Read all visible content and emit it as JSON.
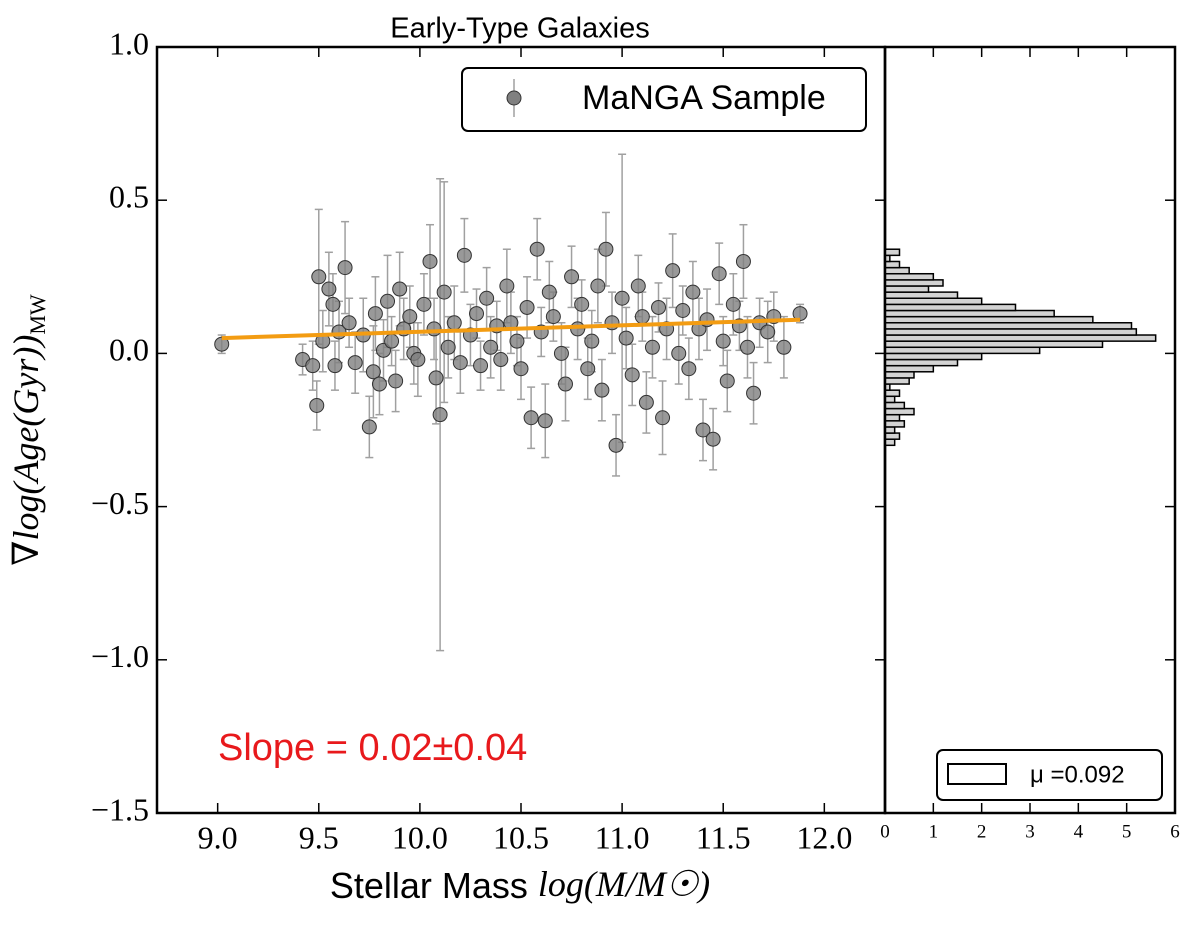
{
  "chart_data": [
    {
      "type": "scatter",
      "title": "Early-Type Galaxies",
      "xlabel": "Stellar Mass",
      "xlabel_math": "log(M/M☉)",
      "ylabel": "∇log(Age(Gyr))",
      "ylabel_sub": "MW",
      "legend": "MaNGA Sample",
      "legend_position": "upper right",
      "annotation": "Slope = 0.02±0.04",
      "annotation_color": "#e8191c",
      "color": "#808080",
      "errcolor": "#a0a0a0",
      "xlim": [
        8.7,
        12.3
      ],
      "ylim": [
        -1.5,
        1.0
      ],
      "xticks": [
        {
          "value": 9,
          "label": "9.0"
        },
        {
          "value": 9.5,
          "label": "9.5"
        },
        {
          "value": 10,
          "label": "10.0"
        },
        {
          "value": 10.5,
          "label": "10.5"
        },
        {
          "value": 11,
          "label": "11.0"
        },
        {
          "value": 11.5,
          "label": "11.5"
        },
        {
          "value": 12,
          "label": "12.0"
        }
      ],
      "yticks": [
        {
          "value": -1.5,
          "label": "−1.5"
        },
        {
          "value": -1,
          "label": "−1.0"
        },
        {
          "value": -0.5,
          "label": "−0.5"
        },
        {
          "value": 0,
          "label": "0.0"
        },
        {
          "value": 0.5,
          "label": "0.5"
        },
        {
          "value": 1,
          "label": "1.0"
        }
      ],
      "fit": {
        "x": [
          9.02,
          11.88
        ],
        "y": [
          0.05,
          0.11
        ],
        "color": "#f39c12"
      },
      "x": [
        9.02,
        9.42,
        9.47,
        9.49,
        9.5,
        9.52,
        9.55,
        9.57,
        9.58,
        9.6,
        9.63,
        9.65,
        9.68,
        9.72,
        9.75,
        9.77,
        9.78,
        9.8,
        9.82,
        9.84,
        9.86,
        9.88,
        9.9,
        9.92,
        9.95,
        9.97,
        9.99,
        10.02,
        10.05,
        10.07,
        10.08,
        10.1,
        10.12,
        10.14,
        10.17,
        10.2,
        10.22,
        10.25,
        10.28,
        10.3,
        10.33,
        10.35,
        10.38,
        10.4,
        10.43,
        10.45,
        10.48,
        10.5,
        10.53,
        10.55,
        10.58,
        10.6,
        10.62,
        10.64,
        10.66,
        10.7,
        10.72,
        10.75,
        10.78,
        10.8,
        10.83,
        10.85,
        10.88,
        10.9,
        10.92,
        10.95,
        10.97,
        11.0,
        11.02,
        11.05,
        11.08,
        11.1,
        11.12,
        11.15,
        11.18,
        11.2,
        11.22,
        11.25,
        11.28,
        11.3,
        11.33,
        11.35,
        11.38,
        11.4,
        11.42,
        11.45,
        11.48,
        11.5,
        11.52,
        11.55,
        11.58,
        11.6,
        11.62,
        11.65,
        11.68,
        11.72,
        11.75,
        11.8,
        11.88
      ],
      "y": [
        0.03,
        -0.02,
        -0.04,
        -0.17,
        0.25,
        0.04,
        0.21,
        0.16,
        -0.04,
        0.07,
        0.28,
        0.1,
        -0.03,
        0.06,
        -0.24,
        -0.06,
        0.13,
        -0.1,
        0.01,
        0.17,
        0.04,
        -0.09,
        0.21,
        0.08,
        0.12,
        0.0,
        -0.02,
        0.16,
        0.3,
        0.08,
        -0.08,
        -0.2,
        0.2,
        0.02,
        0.1,
        -0.03,
        0.32,
        0.06,
        0.13,
        -0.04,
        0.18,
        0.02,
        0.09,
        -0.02,
        0.22,
        0.1,
        0.04,
        -0.05,
        0.15,
        -0.21,
        0.34,
        0.07,
        -0.22,
        0.2,
        0.12,
        0.0,
        -0.1,
        0.25,
        0.08,
        0.16,
        -0.05,
        0.04,
        0.22,
        -0.12,
        0.34,
        0.1,
        -0.3,
        0.18,
        0.05,
        -0.07,
        0.22,
        0.12,
        -0.16,
        0.02,
        0.15,
        -0.21,
        0.08,
        0.27,
        0.0,
        0.14,
        -0.05,
        0.2,
        0.08,
        -0.25,
        0.11,
        -0.28,
        0.26,
        0.04,
        -0.09,
        0.16,
        0.09,
        0.3,
        0.02,
        -0.13,
        0.1,
        0.07,
        0.12,
        0.02,
        0.13
      ],
      "yerr": [
        0.03,
        0.05,
        0.08,
        0.08,
        0.22,
        0.1,
        0.12,
        0.1,
        0.08,
        0.1,
        0.15,
        0.08,
        0.1,
        0.12,
        0.1,
        0.15,
        0.12,
        0.1,
        0.1,
        0.15,
        0.08,
        0.1,
        0.12,
        0.1,
        0.1,
        0.1,
        0.12,
        0.1,
        0.12,
        0.1,
        0.15,
        0.77,
        0.36,
        0.1,
        0.12,
        0.1,
        0.12,
        0.1,
        0.08,
        0.08,
        0.1,
        0.1,
        0.08,
        0.1,
        0.12,
        0.1,
        0.08,
        0.1,
        0.1,
        0.1,
        0.1,
        0.08,
        0.12,
        0.1,
        0.08,
        0.1,
        0.12,
        0.1,
        0.1,
        0.08,
        0.1,
        0.1,
        0.12,
        0.1,
        0.12,
        0.1,
        0.1,
        0.47,
        0.1,
        0.1,
        0.1,
        0.08,
        0.1,
        0.1,
        0.08,
        0.12,
        0.1,
        0.12,
        0.1,
        0.08,
        0.1,
        0.1,
        0.1,
        0.1,
        0.1,
        0.1,
        0.1,
        0.08,
        0.1,
        0.1,
        0.08,
        0.12,
        0.1,
        0.1,
        0.08,
        0.1,
        0.08,
        0.1,
        0.03
      ]
    },
    {
      "type": "histogram",
      "orientation": "horizontal",
      "color": "#d3d3d3",
      "legend": "μ =0.092",
      "legend_position": "lower right",
      "xlim": [
        0,
        6
      ],
      "xticks": [
        0,
        1,
        2,
        3,
        4,
        5,
        6
      ],
      "ylim": [
        -1.5,
        1.0
      ],
      "yticks": [
        -1.5,
        -1,
        -0.5,
        0,
        0.5,
        1
      ],
      "bins": [
        -0.3,
        -0.28,
        -0.26,
        -0.24,
        -0.22,
        -0.2,
        -0.18,
        -0.16,
        -0.14,
        -0.12,
        -0.1,
        -0.08,
        -0.06,
        -0.04,
        -0.02,
        0.0,
        0.02,
        0.04,
        0.06,
        0.08,
        0.1,
        0.12,
        0.14,
        0.16,
        0.18,
        0.2,
        0.22,
        0.24,
        0.26,
        0.28,
        0.3,
        0.32,
        0.34
      ],
      "counts": [
        0.2,
        0.3,
        0.2,
        0.4,
        0.3,
        0.6,
        0.4,
        0.2,
        0.3,
        0.1,
        0.5,
        0.6,
        1.0,
        1.5,
        2.0,
        3.2,
        4.5,
        5.6,
        5.2,
        5.1,
        4.3,
        3.5,
        2.7,
        2.0,
        1.5,
        0.9,
        1.2,
        1.0,
        0.5,
        0.3,
        0.1,
        0.3
      ]
    }
  ]
}
